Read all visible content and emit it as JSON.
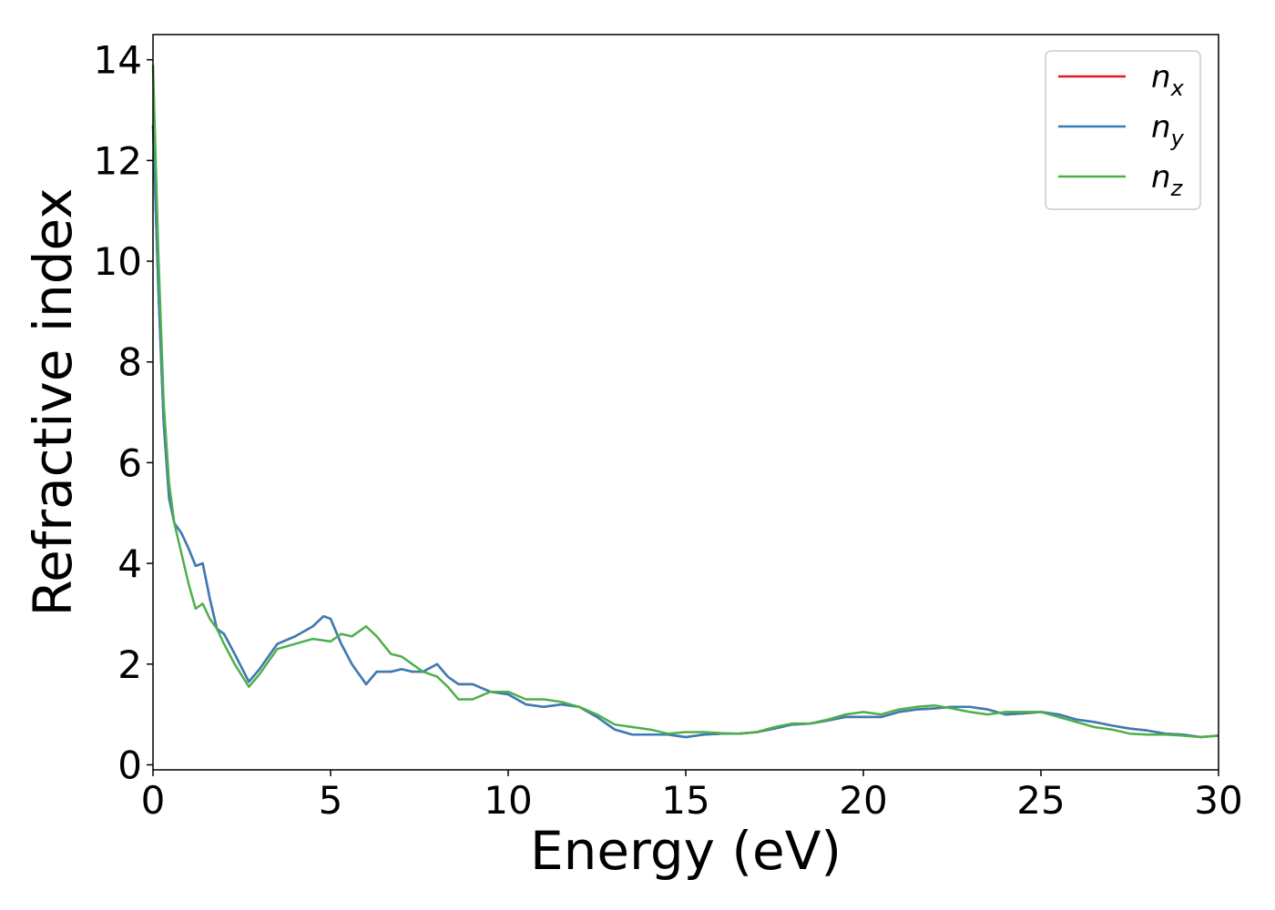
{
  "chart_data": {
    "type": "line",
    "title": "",
    "xlabel": "Energy (eV)",
    "ylabel": "Refractive index",
    "xlim": [
      0,
      30
    ],
    "ylim": [
      -0.1,
      14.5
    ],
    "xticks": [
      0,
      5,
      10,
      15,
      20,
      25,
      30
    ],
    "yticks": [
      0,
      2,
      4,
      6,
      8,
      10,
      12,
      14
    ],
    "grid": false,
    "legend_position": "top-right",
    "series": [
      {
        "name": "n",
        "subscript": "x",
        "color": "#e41a1c",
        "x": [
          0,
          0.15,
          0.3,
          0.45,
          0.6,
          0.8,
          1.0,
          1.2,
          1.4,
          1.6,
          1.8,
          2.0,
          2.3,
          2.7,
          3.0,
          3.5,
          4.0,
          4.5,
          4.8,
          5.0,
          5.3,
          5.6,
          6.0,
          6.3,
          6.7,
          7.0,
          7.3,
          7.6,
          8.0,
          8.3,
          8.6,
          9.0,
          9.5,
          10.0,
          10.5,
          11.0,
          11.5,
          12.0,
          12.5,
          13.0,
          13.5,
          14.0,
          14.5,
          15.0,
          15.5,
          16.0,
          16.5,
          17.0,
          17.5,
          18.0,
          18.5,
          19.0,
          19.5,
          20.0,
          20.5,
          21.0,
          21.5,
          22.0,
          22.5,
          23.0,
          23.5,
          24.0,
          24.5,
          25.0,
          25.5,
          26.0,
          26.5,
          27.0,
          27.5,
          28.0,
          28.5,
          29.0,
          29.5,
          30.0
        ],
        "y": [
          12.7,
          9.5,
          6.8,
          5.3,
          4.8,
          4.6,
          4.3,
          3.95,
          4.0,
          3.3,
          2.7,
          2.6,
          2.2,
          1.65,
          1.9,
          2.4,
          2.55,
          2.75,
          2.95,
          2.9,
          2.4,
          2.0,
          1.6,
          1.85,
          1.85,
          1.9,
          1.85,
          1.85,
          2.0,
          1.75,
          1.6,
          1.6,
          1.45,
          1.4,
          1.2,
          1.15,
          1.2,
          1.15,
          0.95,
          0.7,
          0.6,
          0.6,
          0.6,
          0.55,
          0.6,
          0.62,
          0.62,
          0.65,
          0.72,
          0.8,
          0.82,
          0.88,
          0.95,
          0.95,
          0.95,
          1.05,
          1.1,
          1.12,
          1.15,
          1.15,
          1.1,
          1.0,
          1.02,
          1.05,
          1.0,
          0.9,
          0.85,
          0.78,
          0.72,
          0.68,
          0.62,
          0.6,
          0.55,
          0.58
        ]
      },
      {
        "name": "n",
        "subscript": "y",
        "color": "#377eb8",
        "x": [
          0,
          0.15,
          0.3,
          0.45,
          0.6,
          0.8,
          1.0,
          1.2,
          1.4,
          1.6,
          1.8,
          2.0,
          2.3,
          2.7,
          3.0,
          3.5,
          4.0,
          4.5,
          4.8,
          5.0,
          5.3,
          5.6,
          6.0,
          6.3,
          6.7,
          7.0,
          7.3,
          7.6,
          8.0,
          8.3,
          8.6,
          9.0,
          9.5,
          10.0,
          10.5,
          11.0,
          11.5,
          12.0,
          12.5,
          13.0,
          13.5,
          14.0,
          14.5,
          15.0,
          15.5,
          16.0,
          16.5,
          17.0,
          17.5,
          18.0,
          18.5,
          19.0,
          19.5,
          20.0,
          20.5,
          21.0,
          21.5,
          22.0,
          22.5,
          23.0,
          23.5,
          24.0,
          24.5,
          25.0,
          25.5,
          26.0,
          26.5,
          27.0,
          27.5,
          28.0,
          28.5,
          29.0,
          29.5,
          30.0
        ],
        "y": [
          12.7,
          9.5,
          6.8,
          5.3,
          4.8,
          4.6,
          4.3,
          3.95,
          4.0,
          3.3,
          2.7,
          2.6,
          2.2,
          1.65,
          1.9,
          2.4,
          2.55,
          2.75,
          2.95,
          2.9,
          2.4,
          2.0,
          1.6,
          1.85,
          1.85,
          1.9,
          1.85,
          1.85,
          2.0,
          1.75,
          1.6,
          1.6,
          1.45,
          1.4,
          1.2,
          1.15,
          1.2,
          1.15,
          0.95,
          0.7,
          0.6,
          0.6,
          0.6,
          0.55,
          0.6,
          0.62,
          0.62,
          0.65,
          0.72,
          0.8,
          0.82,
          0.88,
          0.95,
          0.95,
          0.95,
          1.05,
          1.1,
          1.12,
          1.15,
          1.15,
          1.1,
          1.0,
          1.02,
          1.05,
          1.0,
          0.9,
          0.85,
          0.78,
          0.72,
          0.68,
          0.62,
          0.6,
          0.55,
          0.58
        ]
      },
      {
        "name": "n",
        "subscript": "z",
        "color": "#4daf4a",
        "x": [
          0,
          0.15,
          0.3,
          0.45,
          0.6,
          0.8,
          1.0,
          1.2,
          1.4,
          1.6,
          1.8,
          2.0,
          2.3,
          2.7,
          3.0,
          3.5,
          4.0,
          4.5,
          5.0,
          5.3,
          5.6,
          6.0,
          6.3,
          6.7,
          7.0,
          7.3,
          7.6,
          8.0,
          8.3,
          8.6,
          9.0,
          9.5,
          10.0,
          10.5,
          11.0,
          11.5,
          12.0,
          12.5,
          13.0,
          13.5,
          14.0,
          14.5,
          15.0,
          15.5,
          16.0,
          16.5,
          17.0,
          17.5,
          18.0,
          18.5,
          19.0,
          19.5,
          20.0,
          20.5,
          21.0,
          21.5,
          22.0,
          22.5,
          23.0,
          23.5,
          24.0,
          24.5,
          25.0,
          25.5,
          26.0,
          26.5,
          27.0,
          27.5,
          28.0,
          28.5,
          29.0,
          29.5,
          30.0
        ],
        "y": [
          13.9,
          10.2,
          7.2,
          5.6,
          4.8,
          4.2,
          3.6,
          3.1,
          3.2,
          2.9,
          2.7,
          2.4,
          2.0,
          1.55,
          1.8,
          2.3,
          2.4,
          2.5,
          2.45,
          2.6,
          2.55,
          2.75,
          2.55,
          2.2,
          2.15,
          2.0,
          1.85,
          1.75,
          1.55,
          1.3,
          1.3,
          1.45,
          1.45,
          1.3,
          1.3,
          1.25,
          1.15,
          1.0,
          0.8,
          0.75,
          0.7,
          0.62,
          0.65,
          0.65,
          0.63,
          0.62,
          0.65,
          0.75,
          0.82,
          0.82,
          0.9,
          1.0,
          1.05,
          1.0,
          1.1,
          1.15,
          1.18,
          1.12,
          1.05,
          1.0,
          1.05,
          1.05,
          1.05,
          0.95,
          0.85,
          0.75,
          0.7,
          0.62,
          0.6,
          0.6,
          0.58,
          0.55,
          0.58
        ]
      }
    ]
  }
}
